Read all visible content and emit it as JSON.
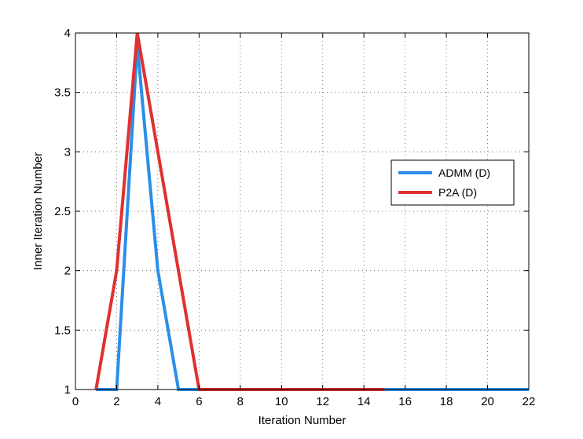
{
  "chart_data": {
    "type": "line",
    "title": "",
    "xlabel": "Iteration Number",
    "ylabel": "Inner Iteration Number",
    "xlim": [
      0,
      22
    ],
    "ylim": [
      1,
      4
    ],
    "xticks": [
      0,
      2,
      4,
      6,
      8,
      10,
      12,
      14,
      16,
      18,
      20,
      22
    ],
    "yticks": [
      1,
      1.5,
      2,
      2.5,
      3,
      3.5,
      4
    ],
    "xtick_labels": [
      "0",
      "2",
      "4",
      "6",
      "8",
      "10",
      "12",
      "14",
      "16",
      "18",
      "20",
      "22"
    ],
    "ytick_labels": [
      "1",
      "1.5",
      "2",
      "2.5",
      "3",
      "3.5",
      "4"
    ],
    "grid": true,
    "legend_position": "right",
    "series": [
      {
        "name": "ADMM (D)",
        "color": "#2b8ee8",
        "x": [
          1,
          2,
          3,
          4,
          5,
          6,
          7,
          8,
          9,
          10,
          11,
          12,
          13,
          14,
          15,
          16,
          17,
          18,
          19,
          20,
          21,
          22
        ],
        "y": [
          1,
          1,
          3.9,
          2,
          1,
          1,
          1,
          1,
          1,
          1,
          1,
          1,
          1,
          1,
          1,
          1,
          1,
          1,
          1,
          1,
          1,
          1
        ]
      },
      {
        "name": "P2A (D)",
        "color": "#e03030",
        "x": [
          1,
          2,
          3,
          4,
          5,
          6,
          7,
          8,
          9,
          10,
          11,
          12,
          13,
          14,
          15
        ],
        "y": [
          1,
          2,
          4,
          3,
          2,
          1,
          1,
          1,
          1,
          1,
          1,
          1,
          1,
          1,
          1
        ]
      }
    ]
  }
}
